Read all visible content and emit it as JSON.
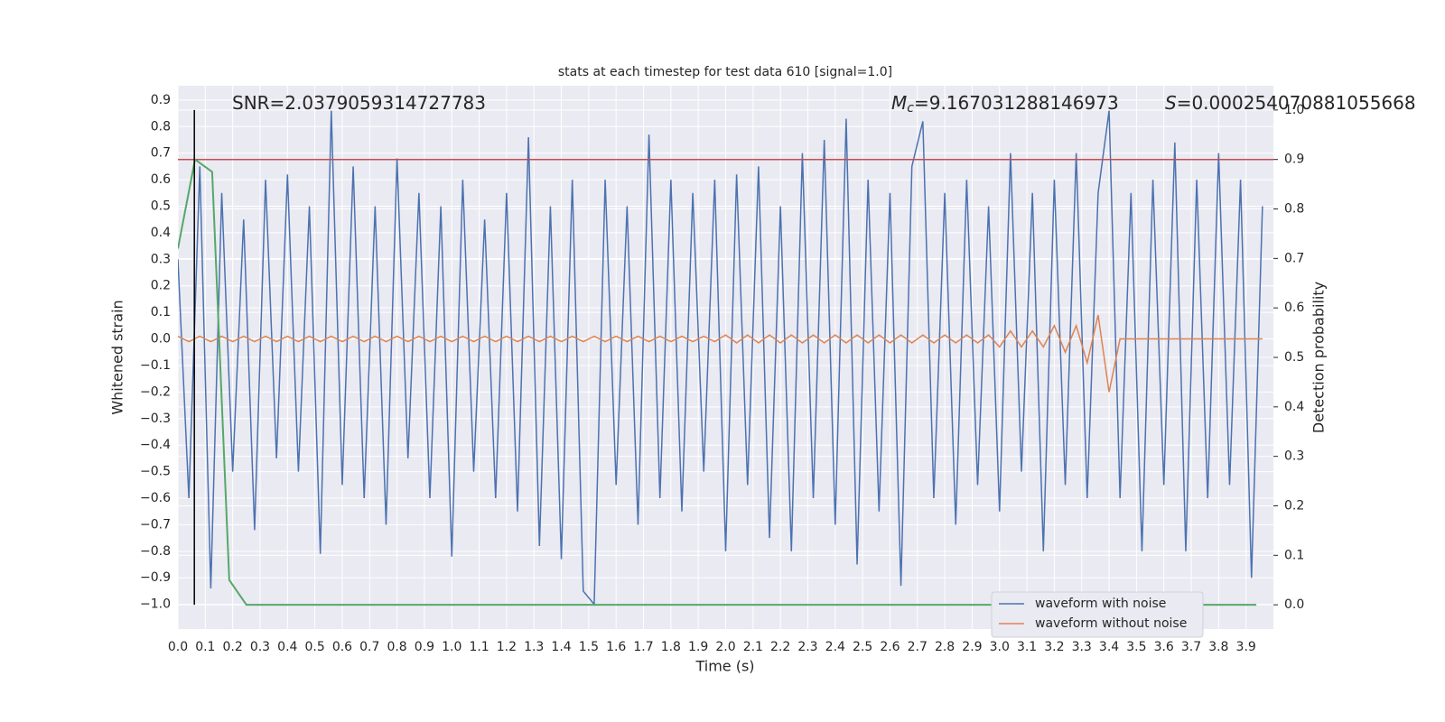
{
  "chart_data": {
    "type": "line",
    "title": "stats at each timestep for test data 610 [signal=1.0]",
    "xlabel": "Time (s)",
    "ylabel": "Whitened strain",
    "y2label": "Detection probability",
    "annotations": [
      {
        "text": "SNR=2.0379059314727783"
      },
      {
        "symbol": "M",
        "subscript": "c",
        "text": "=9.167031288146973"
      },
      {
        "symbol": "S",
        "text": "=0.000254070881055668"
      }
    ],
    "xlim": [
      0,
      4.0
    ],
    "ylim": [
      -1.093,
      0.954
    ],
    "y2lim": [
      -0.049,
      1.049
    ],
    "xticks": [
      {
        "value": 0,
        "label": "0.0"
      },
      0.1,
      0.2,
      0.3,
      0.4,
      0.5,
      0.6,
      0.7,
      0.8,
      0.9,
      {
        "value": 1,
        "label": "1.0"
      },
      1.1,
      1.2,
      1.3,
      1.4,
      1.5,
      1.6,
      1.7,
      1.8,
      1.9,
      {
        "value": 2,
        "label": "2.0"
      },
      2.1,
      2.2,
      2.3,
      2.4,
      2.5,
      2.6,
      2.7,
      2.8,
      2.9,
      {
        "value": 3,
        "label": "3.0"
      },
      3.1,
      3.2,
      3.3,
      3.4,
      3.5,
      3.6,
      3.7,
      3.8,
      3.9
    ],
    "yticks": [
      {
        "value": -1,
        "label": "−1.0"
      },
      {
        "value": -0.9,
        "label": "−0.9"
      },
      {
        "value": -0.8,
        "label": "−0.8"
      },
      {
        "value": -0.7,
        "label": "−0.7"
      },
      {
        "value": -0.6,
        "label": "−0.6"
      },
      {
        "value": -0.5,
        "label": "−0.5"
      },
      {
        "value": -0.4,
        "label": "−0.4"
      },
      {
        "value": -0.3,
        "label": "−0.3"
      },
      {
        "value": -0.2,
        "label": "−0.2"
      },
      {
        "value": -0.1,
        "label": "−0.1"
      },
      {
        "value": 0,
        "label": "0.0"
      },
      0.1,
      0.2,
      0.3,
      0.4,
      0.5,
      0.6,
      0.7,
      0.8,
      0.9
    ],
    "y2ticks": [
      {
        "value": 0,
        "label": "0.0"
      },
      0.1,
      0.2,
      0.3,
      0.4,
      0.5,
      0.6,
      0.7,
      0.8,
      0.9,
      {
        "value": 1,
        "label": "1.0"
      }
    ],
    "grid": true,
    "legend": "lower right",
    "series": [
      {
        "name": "waveform with noise",
        "color": "#4c72b0",
        "x": [
          0.0,
          0.04,
          0.08,
          0.12,
          0.16,
          0.2,
          0.24,
          0.28,
          0.32,
          0.36,
          0.4,
          0.44,
          0.48,
          0.52,
          0.56,
          0.6,
          0.64,
          0.68,
          0.72,
          0.76,
          0.8,
          0.84,
          0.88,
          0.92,
          0.96,
          1.0,
          1.04,
          1.08,
          1.12,
          1.16,
          1.2,
          1.24,
          1.28,
          1.32,
          1.36,
          1.4,
          1.44,
          1.48,
          1.52,
          1.56,
          1.6,
          1.64,
          1.68,
          1.72,
          1.76,
          1.8,
          1.84,
          1.88,
          1.92,
          1.96,
          2.0,
          2.04,
          2.08,
          2.12,
          2.16,
          2.2,
          2.24,
          2.28,
          2.32,
          2.36,
          2.4,
          2.44,
          2.48,
          2.52,
          2.56,
          2.6,
          2.64,
          2.68,
          2.72,
          2.76,
          2.8,
          2.84,
          2.88,
          2.92,
          2.96,
          3.0,
          3.04,
          3.08,
          3.12,
          3.16,
          3.2,
          3.24,
          3.28,
          3.32,
          3.36,
          3.4,
          3.44,
          3.48,
          3.52,
          3.56,
          3.6,
          3.64,
          3.68,
          3.72,
          3.76,
          3.8,
          3.84,
          3.88,
          3.92,
          3.96
        ],
        "values": [
          0.3,
          -0.6,
          0.65,
          -0.94,
          0.55,
          -0.5,
          0.45,
          -0.72,
          0.6,
          -0.45,
          0.62,
          -0.5,
          0.5,
          -0.81,
          0.86,
          -0.55,
          0.65,
          -0.6,
          0.5,
          -0.7,
          0.68,
          -0.45,
          0.55,
          -0.6,
          0.5,
          -0.82,
          0.6,
          -0.5,
          0.45,
          -0.6,
          0.55,
          -0.65,
          0.76,
          -0.78,
          0.5,
          -0.83,
          0.6,
          -0.95,
          -1.0,
          0.6,
          -0.55,
          0.5,
          -0.7,
          0.77,
          -0.6,
          0.6,
          -0.65,
          0.55,
          -0.5,
          0.6,
          -0.8,
          0.62,
          -0.55,
          0.65,
          -0.75,
          0.5,
          -0.8,
          0.7,
          -0.6,
          0.75,
          -0.7,
          0.83,
          -0.85,
          0.6,
          -0.65,
          0.55,
          -0.93,
          0.65,
          0.82,
          -0.6,
          0.55,
          -0.7,
          0.6,
          -0.55,
          0.5,
          -0.65,
          0.7,
          -0.5,
          0.55,
          -0.8,
          0.6,
          -0.55,
          0.7,
          -0.6,
          0.55,
          0.86,
          -0.6,
          0.55,
          -0.8,
          0.6,
          -0.55,
          0.74,
          -0.8,
          0.6,
          -0.6,
          0.7,
          -0.55,
          0.6,
          -0.9,
          0.5
        ]
      },
      {
        "name": "waveform without noise",
        "color": "#dd8452",
        "x": [
          0.0,
          0.04,
          0.08,
          0.12,
          0.16,
          0.2,
          0.24,
          0.28,
          0.32,
          0.36,
          0.4,
          0.44,
          0.48,
          0.52,
          0.56,
          0.6,
          0.64,
          0.68,
          0.72,
          0.76,
          0.8,
          0.84,
          0.88,
          0.92,
          0.96,
          1.0,
          1.04,
          1.08,
          1.12,
          1.16,
          1.2,
          1.24,
          1.28,
          1.32,
          1.36,
          1.4,
          1.44,
          1.48,
          1.52,
          1.56,
          1.6,
          1.64,
          1.68,
          1.72,
          1.76,
          1.8,
          1.84,
          1.88,
          1.92,
          1.96,
          2.0,
          2.04,
          2.08,
          2.12,
          2.16,
          2.2,
          2.24,
          2.28,
          2.32,
          2.36,
          2.4,
          2.44,
          2.48,
          2.52,
          2.56,
          2.6,
          2.64,
          2.68,
          2.72,
          2.76,
          2.8,
          2.84,
          2.88,
          2.92,
          2.96,
          3.0,
          3.04,
          3.08,
          3.12,
          3.16,
          3.2,
          3.24,
          3.28,
          3.32,
          3.36,
          3.4,
          3.44,
          3.48,
          3.52,
          3.56,
          3.6,
          3.64,
          3.68,
          3.72,
          3.76,
          3.8,
          3.84,
          3.88,
          3.92,
          3.96
        ],
        "values": [
          0.01,
          -0.01,
          0.01,
          -0.01,
          0.01,
          -0.01,
          0.01,
          -0.01,
          0.01,
          -0.01,
          0.01,
          -0.01,
          0.01,
          -0.01,
          0.01,
          -0.01,
          0.01,
          -0.01,
          0.01,
          -0.01,
          0.01,
          -0.01,
          0.01,
          -0.01,
          0.01,
          -0.01,
          0.01,
          -0.01,
          0.01,
          -0.01,
          0.01,
          -0.01,
          0.01,
          -0.01,
          0.01,
          -0.01,
          0.01,
          -0.01,
          0.01,
          -0.01,
          0.01,
          -0.01,
          0.01,
          -0.01,
          0.01,
          -0.01,
          0.01,
          -0.01,
          0.01,
          -0.01,
          0.015,
          -0.015,
          0.015,
          -0.015,
          0.015,
          -0.015,
          0.015,
          -0.015,
          0.015,
          -0.015,
          0.015,
          -0.015,
          0.015,
          -0.015,
          0.015,
          -0.015,
          0.015,
          -0.015,
          0.015,
          -0.015,
          0.015,
          -0.015,
          0.015,
          -0.015,
          0.015,
          -0.03,
          0.03,
          -0.03,
          0.03,
          -0.03,
          0.05,
          -0.05,
          0.05,
          -0.09,
          0.09,
          -0.2,
          0,
          0,
          0,
          0,
          0,
          0,
          0,
          0,
          0,
          0,
          0,
          0,
          0,
          0
        ]
      }
    ],
    "probability": {
      "color": "#55a868",
      "axis": "y2",
      "x": [
        0,
        0.0625,
        0.125,
        0.1875,
        0.25,
        3.9375
      ],
      "values": [
        0.72,
        0.9,
        0.875,
        0.05,
        0.0,
        0.0
      ]
    },
    "threshold": {
      "value": 0.9,
      "axis": "y2",
      "color": "#c44e52"
    },
    "vline": {
      "x": 0.06,
      "ymin": 0,
      "ymax": 1.0,
      "axis": "y2",
      "color": "#000000"
    }
  }
}
